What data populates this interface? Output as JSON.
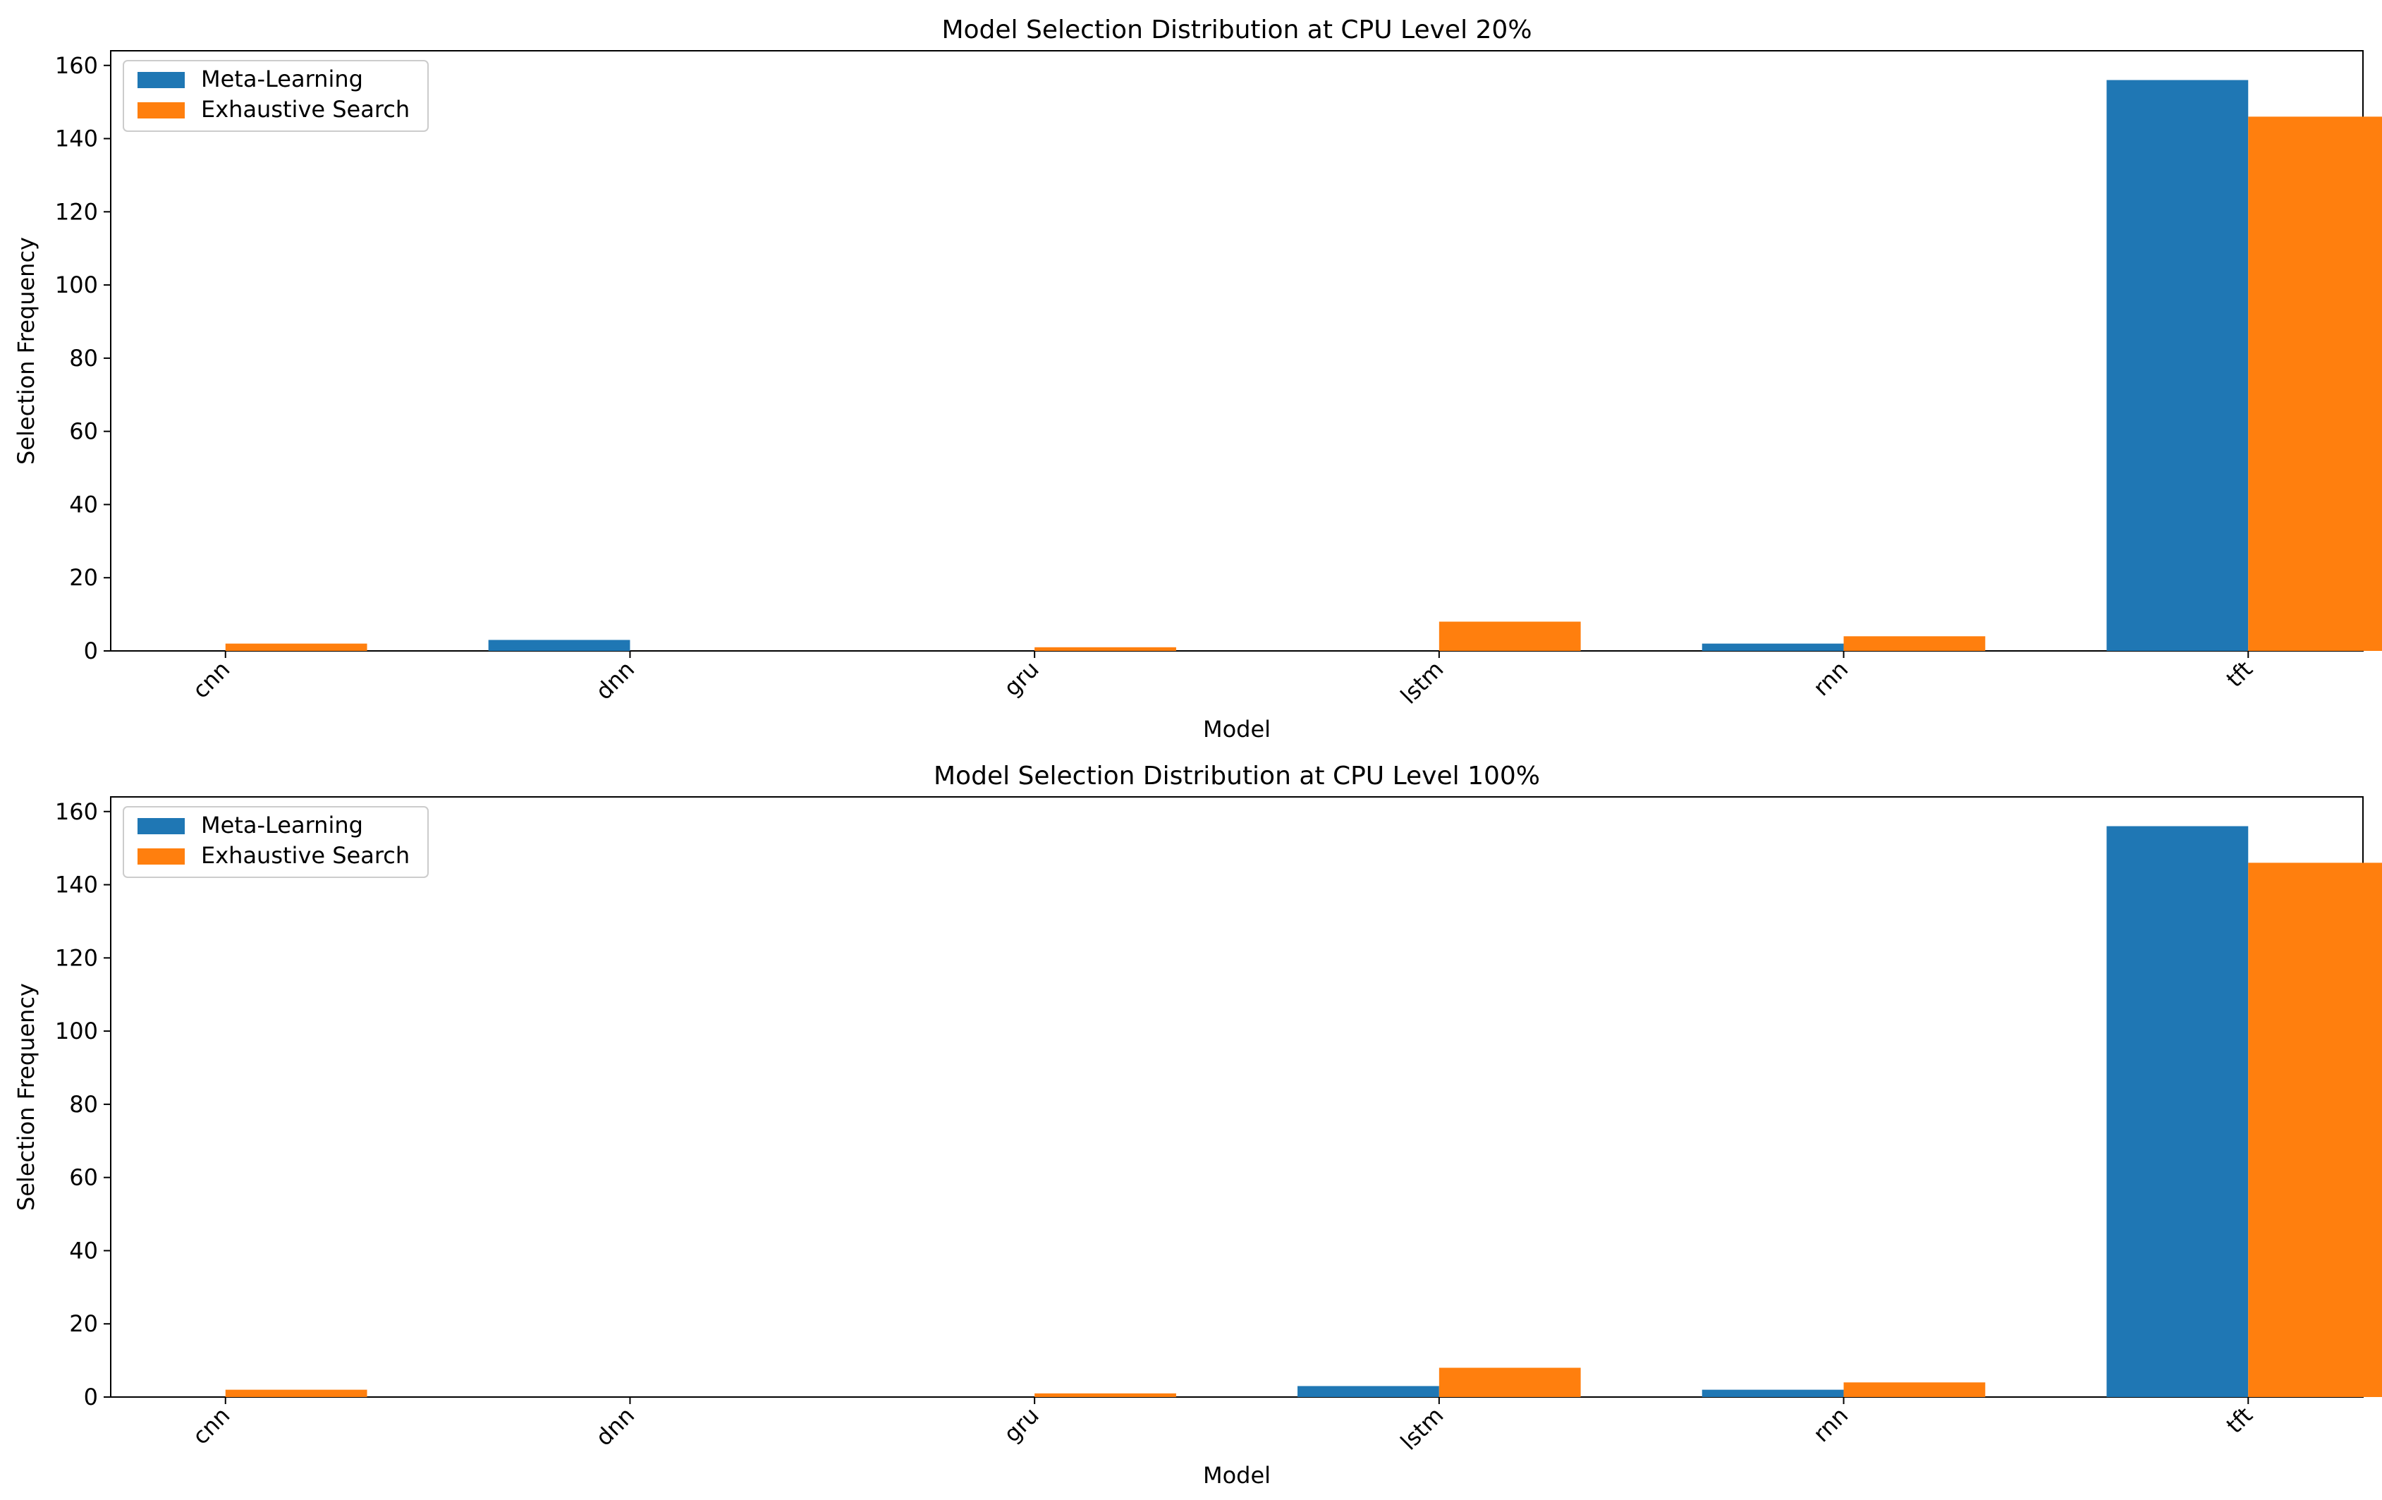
{
  "colors": {
    "meta": "#1f77b4",
    "exhaustive": "#ff7f0e"
  },
  "chart_data": [
    {
      "type": "bar",
      "title": "Model Selection Distribution at CPU Level 20%",
      "xlabel": "Model",
      "ylabel": "Selection Frequency",
      "categories": [
        "cnn",
        "dnn",
        "gru",
        "lstm",
        "rnn",
        "tft"
      ],
      "ylim": [
        0,
        164
      ],
      "yticks": [
        "0",
        "20",
        "40",
        "60",
        "80",
        "100",
        "120",
        "140",
        "160"
      ],
      "legend_position": "top-left",
      "grid": false,
      "series": [
        {
          "name": "Meta-Learning",
          "values": [
            0,
            3,
            0,
            0,
            2,
            156
          ]
        },
        {
          "name": "Exhaustive Search",
          "values": [
            2,
            0,
            1,
            8,
            4,
            146
          ]
        }
      ]
    },
    {
      "type": "bar",
      "title": "Model Selection Distribution at CPU Level 100%",
      "xlabel": "Model",
      "ylabel": "Selection Frequency",
      "categories": [
        "cnn",
        "dnn",
        "gru",
        "lstm",
        "rnn",
        "tft"
      ],
      "ylim": [
        0,
        164
      ],
      "yticks": [
        "0",
        "20",
        "40",
        "60",
        "80",
        "100",
        "120",
        "140",
        "160"
      ],
      "legend_position": "top-left",
      "grid": false,
      "series": [
        {
          "name": "Meta-Learning",
          "values": [
            0,
            0,
            0,
            3,
            2,
            156
          ]
        },
        {
          "name": "Exhaustive Search",
          "values": [
            2,
            0,
            1,
            8,
            4,
            146
          ]
        }
      ]
    }
  ]
}
